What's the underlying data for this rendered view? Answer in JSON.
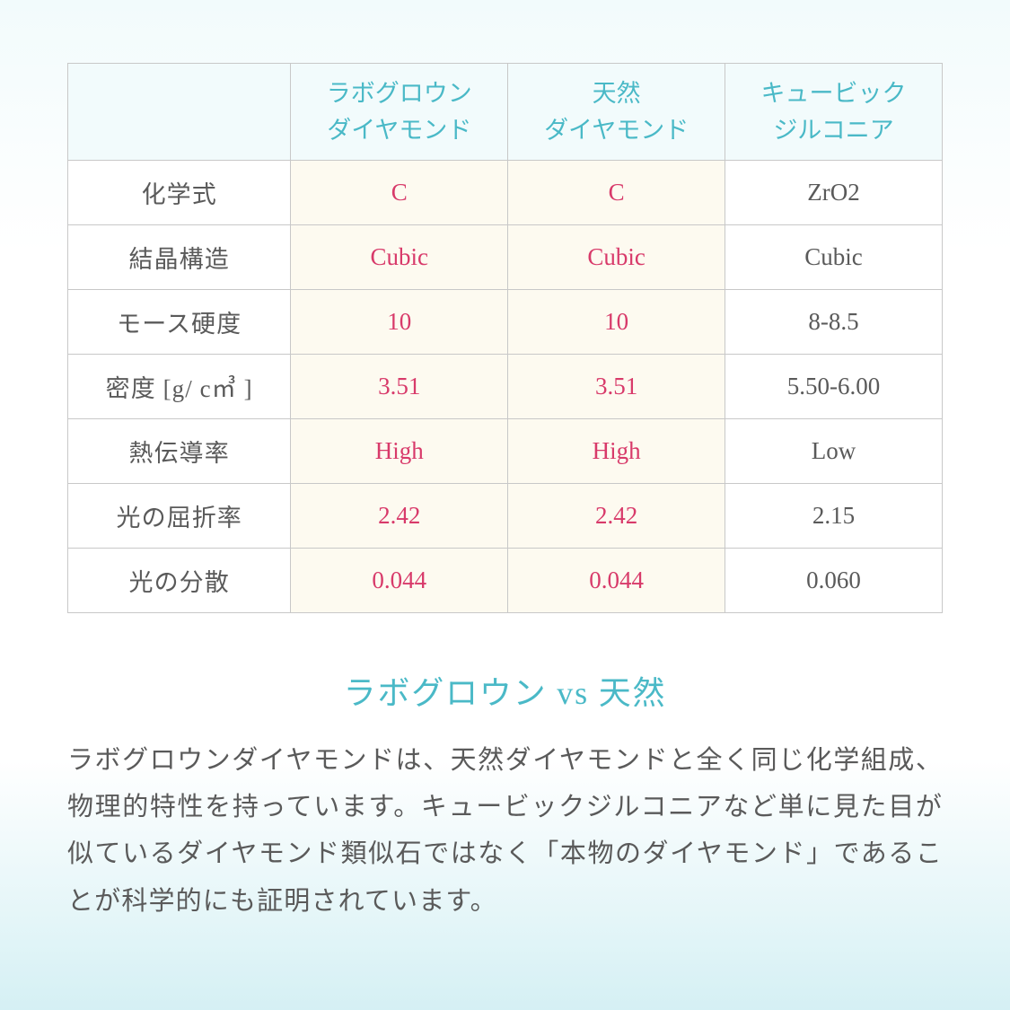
{
  "table": {
    "headers": {
      "col0": "",
      "col1_line1": "ラボグロウン",
      "col1_line2": "ダイヤモンド",
      "col2_line1": "天然",
      "col2_line2": "ダイヤモンド",
      "col3_line1": "キュービック",
      "col3_line2": "ジルコニア"
    },
    "rows": [
      {
        "label": "化学式",
        "lg": "C",
        "nat": "C",
        "cz": "ZrO2"
      },
      {
        "label": "結晶構造",
        "lg": "Cubic",
        "nat": "Cubic",
        "cz": "Cubic"
      },
      {
        "label": "モース硬度",
        "lg": "10",
        "nat": "10",
        "cz": "8-8.5"
      },
      {
        "label": "密度 [g/ c㎥ ]",
        "lg": "3.51",
        "nat": "3.51",
        "cz": "5.50-6.00"
      },
      {
        "label": "熱伝導率",
        "lg": "High",
        "nat": "High",
        "cz": "Low"
      },
      {
        "label": "光の屈折率",
        "lg": "2.42",
        "nat": "2.42",
        "cz": "2.15"
      },
      {
        "label": "光の分散",
        "lg": "0.044",
        "nat": "0.044",
        "cz": "0.060"
      }
    ]
  },
  "subtitle": {
    "left": "ラボグロウン",
    "vs": " vs ",
    "right": "天然"
  },
  "description": "ラボグロウンダイヤモンドは、天然ダイヤモンドと全く同じ化学組成、物理的特性を持っています。キュービックジルコニアなど単に見た目が似ているダイヤモンド類似石ではなく「本物のダイヤモンド」であることが科学的にも証明されています。",
  "style": {
    "accent_color": "#4ab9c7",
    "highlight_color": "#d83a6a",
    "text_color": "#5a5a5a",
    "border_color": "#c8c8c8",
    "lg_nat_bg": "#fdfaf0",
    "header_bg": "#f2fbfc",
    "bg_gradient_top": "#f2fbfc",
    "bg_gradient_bottom": "#d5f0f4",
    "header_fontsize": 27,
    "cell_fontsize": 27,
    "subtitle_fontsize": 36,
    "desc_fontsize": 29
  }
}
